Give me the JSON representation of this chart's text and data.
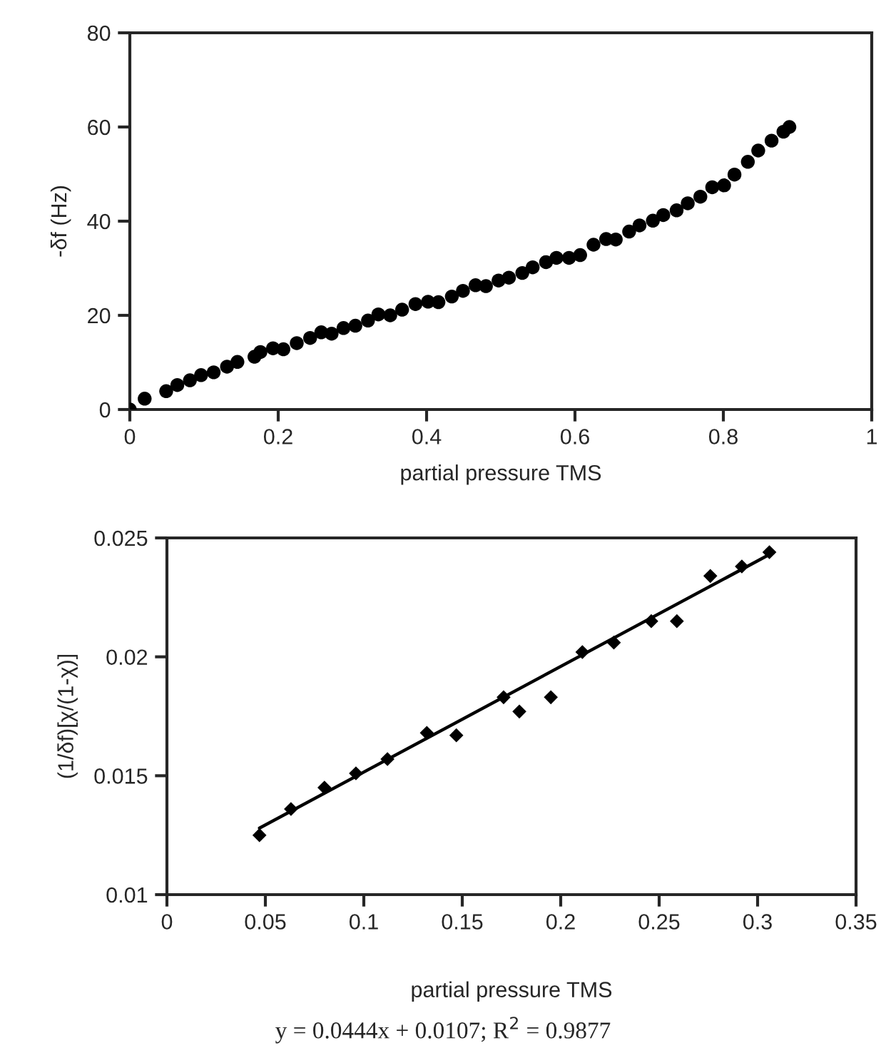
{
  "chart_data": [
    {
      "type": "scatter",
      "xlabel": "partial pressure TMS",
      "ylabel": "-δf (Hz)",
      "xlim": [
        0,
        1
      ],
      "xticks": [
        0,
        0.2,
        0.4,
        0.6,
        0.8,
        1
      ],
      "ylim": [
        0,
        80
      ],
      "yticks": [
        0,
        20,
        40,
        60,
        80
      ],
      "grid": false,
      "marker": "circle",
      "series": [
        {
          "color": "#000000",
          "x": [
            0,
            0.02,
            0.049,
            0.064,
            0.081,
            0.096,
            0.113,
            0.131,
            0.145,
            0.168,
            0.176,
            0.193,
            0.207,
            0.225,
            0.243,
            0.258,
            0.272,
            0.288,
            0.304,
            0.321,
            0.335,
            0.351,
            0.367,
            0.385,
            0.402,
            0.416,
            0.434,
            0.449,
            0.466,
            0.48,
            0.497,
            0.511,
            0.529,
            0.543,
            0.561,
            0.575,
            0.592,
            0.607,
            0.625,
            0.642,
            0.655,
            0.673,
            0.687,
            0.705,
            0.719,
            0.737,
            0.752,
            0.769,
            0.785,
            0.801,
            0.815,
            0.833,
            0.847,
            0.865,
            0.881,
            0.889
          ],
          "values": [
            0,
            2.3,
            3.9,
            5.2,
            6.2,
            7.3,
            7.9,
            9.1,
            10.1,
            11.2,
            12.2,
            13.0,
            12.8,
            14.1,
            15.2,
            16.4,
            16.1,
            17.3,
            17.8,
            18.9,
            20.2,
            20.0,
            21.2,
            22.4,
            22.9,
            22.8,
            24.0,
            25.2,
            26.4,
            26.2,
            27.4,
            28.0,
            29.0,
            30.2,
            31.3,
            32.2,
            32.2,
            32.8,
            35.0,
            36.2,
            36.1,
            37.8,
            39.1,
            40.1,
            41.3,
            42.3,
            43.8,
            45.2,
            47.2,
            47.6,
            49.9,
            52.6,
            55.0,
            57.1,
            59.0,
            60.0
          ]
        }
      ]
    },
    {
      "type": "scatter",
      "xlabel": "partial pressure TMS",
      "ylabel": "(1/δf)[χ/(1-χ)]",
      "xlim": [
        0,
        0.35
      ],
      "xticks": [
        0,
        0.05,
        0.1,
        0.15,
        0.2,
        0.25,
        0.3,
        0.35
      ],
      "ylim": [
        0.01,
        0.025
      ],
      "yticks": [
        0.01,
        0.015,
        0.02,
        0.025
      ],
      "grid": false,
      "marker": "diamond",
      "annotations": [
        "y = 0.0444x + 0.0107; R$^{2}$ = 0.9877"
      ],
      "series": [
        {
          "color": "#000000",
          "x": [
            0.047,
            0.063,
            0.08,
            0.096,
            0.112,
            0.132,
            0.147,
            0.171,
            0.179,
            0.195,
            0.211,
            0.227,
            0.246,
            0.259,
            0.276,
            0.292,
            0.306
          ],
          "values": [
            0.0125,
            0.0136,
            0.0145,
            0.0151,
            0.0157,
            0.0168,
            0.0167,
            0.0183,
            0.0177,
            0.0183,
            0.0202,
            0.0206,
            0.0215,
            0.0215,
            0.0234,
            0.0238,
            0.0244
          ]
        },
        {
          "type": "line",
          "color": "#000000",
          "marker": "none",
          "x": [
            0.047,
            0.306
          ],
          "values": [
            0.0128,
            0.0243
          ]
        }
      ]
    }
  ]
}
